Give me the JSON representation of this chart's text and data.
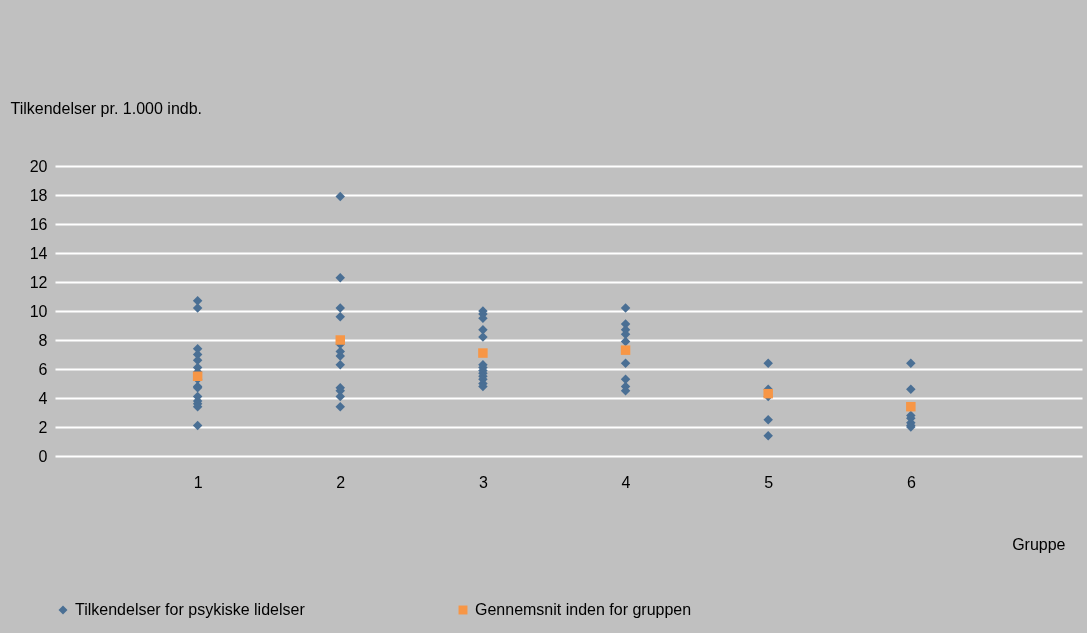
{
  "chart_data": {
    "type": "scatter",
    "ylabel": "Tilkendelser pr. 1.000 indb.",
    "xlabel": "Gruppe",
    "xlim": [
      0,
      7.2
    ],
    "xticks": [
      1,
      2,
      3,
      4,
      5,
      6
    ],
    "ylim": [
      0,
      20
    ],
    "yticks": [
      0,
      2,
      4,
      6,
      8,
      10,
      12,
      14,
      16,
      18,
      20
    ],
    "grid": "y",
    "legend": "bottom",
    "series": [
      {
        "name": "Tilkendelser for psykiske lidelser",
        "color": "#4a6f94",
        "marker": "diamond",
        "x": [
          1,
          1,
          1,
          1,
          1,
          1,
          1,
          1,
          1,
          1,
          1,
          1,
          1,
          1,
          1,
          2,
          2,
          2,
          2,
          2,
          2,
          2,
          2,
          2,
          2,
          2,
          2,
          3,
          3,
          3,
          3,
          3,
          3,
          3,
          3,
          3,
          3,
          3,
          3,
          3,
          4,
          4,
          4,
          4,
          4,
          4,
          4,
          4,
          4,
          5,
          5,
          5,
          5,
          5,
          6,
          6,
          6,
          6,
          6,
          6,
          6
        ],
        "values": [
          10.7,
          10.2,
          7.4,
          7.0,
          6.6,
          6.1,
          5.8,
          5.3,
          4.8,
          4.7,
          4.1,
          3.8,
          3.6,
          3.4,
          2.1,
          17.9,
          12.3,
          10.2,
          9.6,
          7.7,
          7.2,
          6.9,
          6.3,
          4.7,
          4.5,
          4.1,
          3.4,
          10.0,
          9.8,
          9.5,
          8.7,
          8.2,
          6.3,
          6.1,
          5.9,
          5.7,
          5.5,
          5.3,
          5.0,
          4.8,
          10.2,
          9.1,
          8.7,
          8.4,
          7.9,
          6.4,
          5.3,
          4.8,
          4.5,
          6.4,
          4.6,
          4.1,
          2.5,
          1.4,
          6.4,
          4.6,
          2.8,
          2.6,
          2.3,
          2.1,
          2.0
        ]
      },
      {
        "name": "Gennemsnit inden for gruppen",
        "color": "#f79646",
        "marker": "square",
        "x": [
          1,
          2,
          3,
          4,
          5,
          6
        ],
        "values": [
          5.5,
          8.0,
          7.1,
          7.3,
          4.3,
          3.4
        ]
      }
    ]
  }
}
